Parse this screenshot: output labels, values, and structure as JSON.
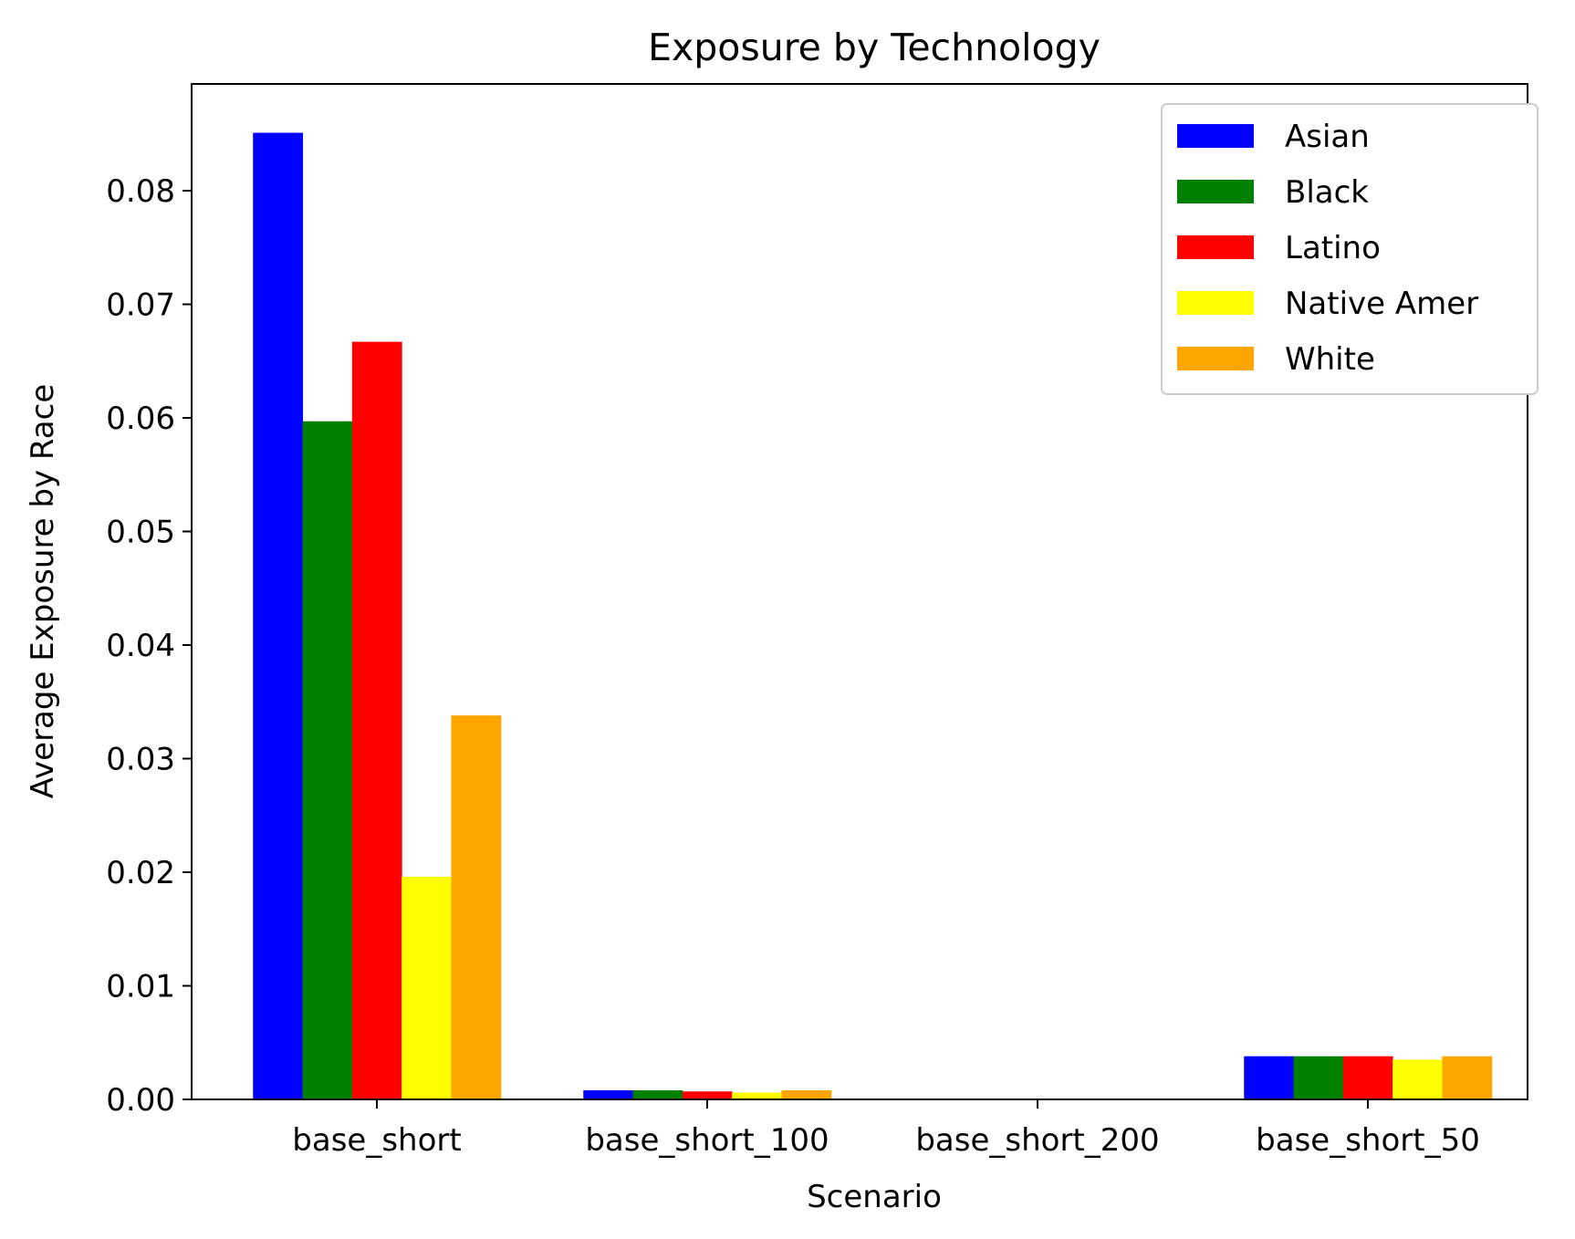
{
  "chart_data": {
    "type": "bar",
    "title": "Exposure by Technology",
    "xlabel": "Scenario",
    "ylabel": "Average Exposure by Race",
    "categories": [
      "base_short",
      "base_short_100",
      "base_short_200",
      "base_short_50"
    ],
    "series": [
      {
        "name": "Asian",
        "color": "#0000ff",
        "values": [
          0.0851,
          0.0008,
          0.0,
          0.0038
        ]
      },
      {
        "name": "Black",
        "color": "#008000",
        "values": [
          0.0597,
          0.0008,
          0.0,
          0.0038
        ]
      },
      {
        "name": "Latino",
        "color": "#ff0000",
        "values": [
          0.0667,
          0.0007,
          0.0,
          0.0038
        ]
      },
      {
        "name": "Native Amer",
        "color": "#ffff00",
        "values": [
          0.0196,
          0.0006,
          0.0,
          0.0035
        ]
      },
      {
        "name": "White",
        "color": "#ffa500",
        "values": [
          0.0338,
          0.0008,
          0.0,
          0.0038
        ]
      }
    ],
    "ylim": [
      0,
      0.0894
    ],
    "yticks": [
      "0.00",
      "0.01",
      "0.02",
      "0.03",
      "0.04",
      "0.05",
      "0.06",
      "0.07",
      "0.08"
    ],
    "grid": false,
    "legend_position": "top-right"
  }
}
